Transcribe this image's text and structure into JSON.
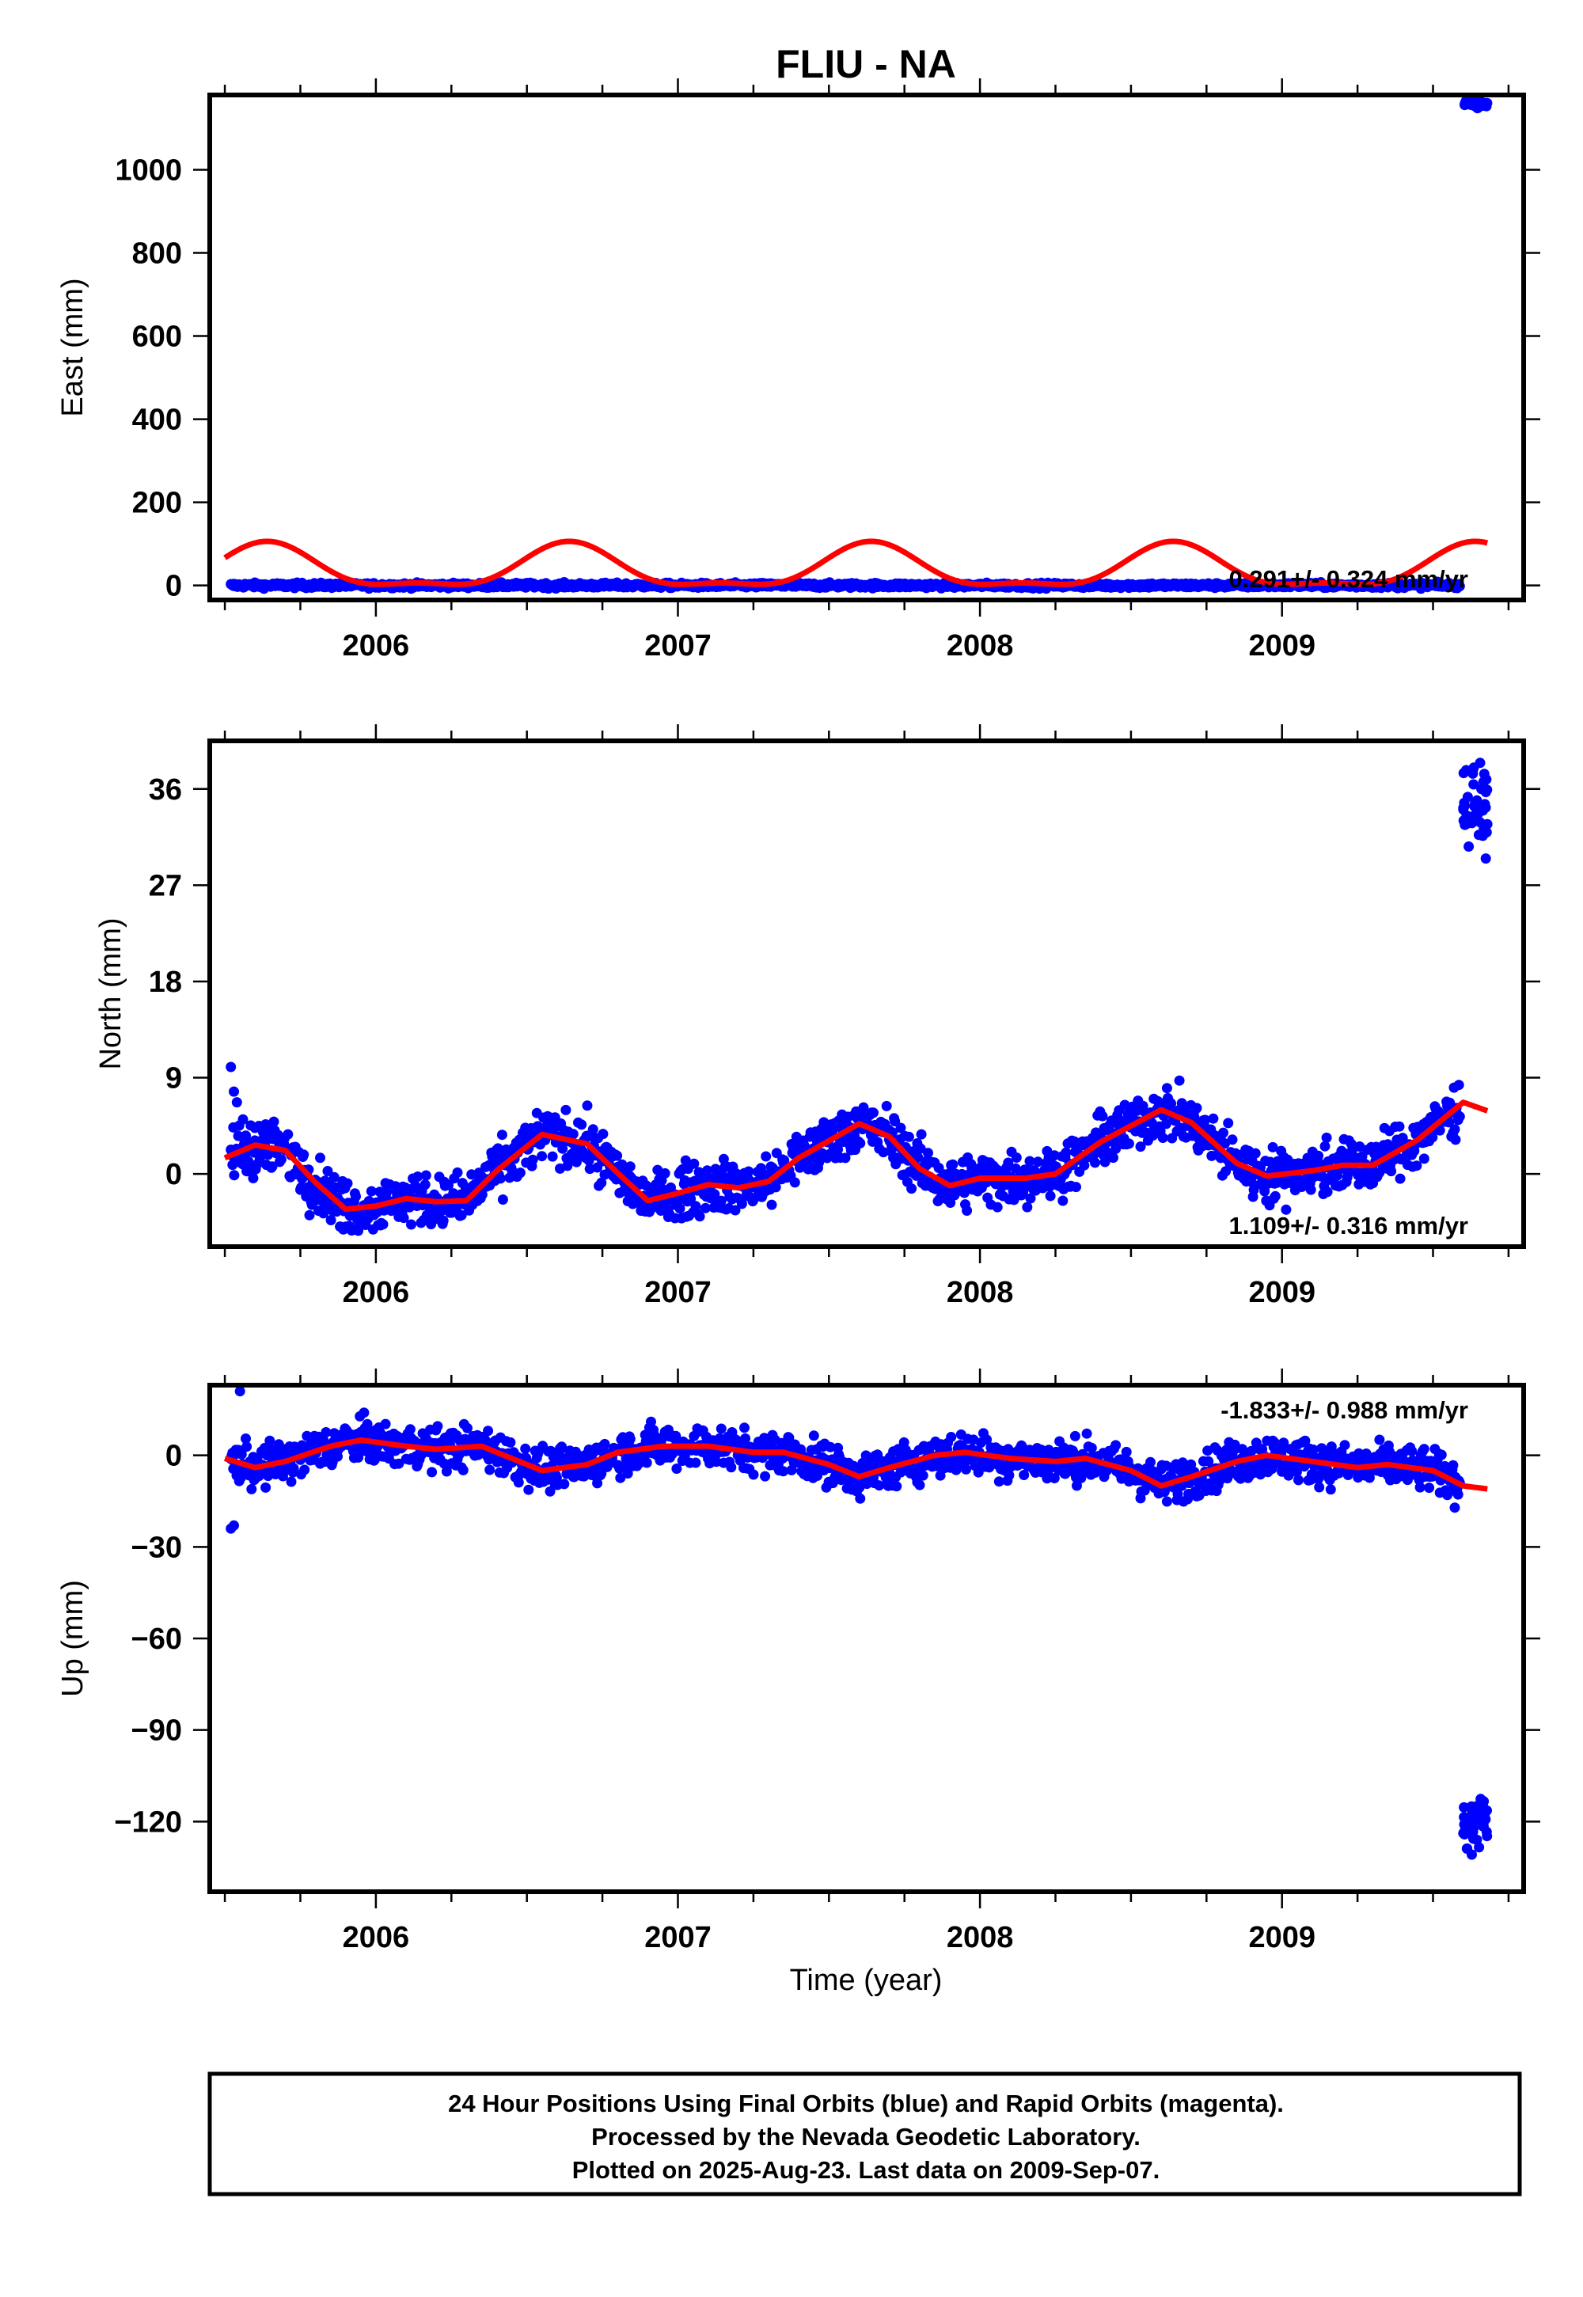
{
  "title": "FLIU - NA",
  "xlabel": "Time (year)",
  "colors": {
    "final": "#0000ff",
    "model": "#ff0000",
    "frame": "#000000"
  },
  "chart_data": [
    {
      "type": "scatter",
      "ylabel": "East (mm)",
      "xlim": [
        2005.45,
        2009.8
      ],
      "ylim": [
        -35,
        1180
      ],
      "xticks": [
        2006,
        2007,
        2008,
        2009
      ],
      "yticks": [
        0,
        200,
        400,
        600,
        800,
        1000
      ],
      "rate_text": "0.291+/- 0.324 mm/yr",
      "rate_position": "bottom-right",
      "series": [],
      "model": {
        "offset": 38,
        "annual_amp": 50,
        "annual_phase_year": 0.64,
        "semiannual_amp": 18,
        "semiannual_phase_year": 0.14
      },
      "scatter": {
        "center": 0,
        "jitter": 4,
        "seasonal_amp": 0
      },
      "outliers": {
        "x_range": [
          2009.6,
          2009.68
        ],
        "y_center": 1160,
        "spread": 6
      }
    },
    {
      "type": "scatter",
      "ylabel": "North (mm)",
      "xlim": [
        2005.45,
        2009.8
      ],
      "ylim": [
        -6.8,
        40.5
      ],
      "xticks": [
        2006,
        2007,
        2008,
        2009
      ],
      "yticks": [
        0,
        9,
        18,
        27,
        36
      ],
      "rate_text": "1.109+/- 0.316 mm/yr",
      "rate_position": "bottom-right",
      "series": [],
      "model_points": [
        [
          2005.5,
          1.5
        ],
        [
          2005.6,
          2.7
        ],
        [
          2005.7,
          2.2
        ],
        [
          2005.8,
          -0.8
        ],
        [
          2005.9,
          -3.3
        ],
        [
          2006.0,
          -3.0
        ],
        [
          2006.1,
          -2.3
        ],
        [
          2006.2,
          -2.6
        ],
        [
          2006.3,
          -2.5
        ],
        [
          2006.4,
          0.3
        ],
        [
          2006.55,
          3.7
        ],
        [
          2006.7,
          2.8
        ],
        [
          2006.8,
          0.1
        ],
        [
          2006.9,
          -2.5
        ],
        [
          2007.0,
          -1.8
        ],
        [
          2007.1,
          -1.0
        ],
        [
          2007.2,
          -1.3
        ],
        [
          2007.3,
          -0.7
        ],
        [
          2007.4,
          1.5
        ],
        [
          2007.6,
          4.7
        ],
        [
          2007.7,
          3.5
        ],
        [
          2007.8,
          0.5
        ],
        [
          2007.9,
          -1.1
        ],
        [
          2008.0,
          -0.4
        ],
        [
          2008.15,
          -0.4
        ],
        [
          2008.25,
          0.0
        ],
        [
          2008.4,
          3.0
        ],
        [
          2008.6,
          6.0
        ],
        [
          2008.7,
          4.8
        ],
        [
          2008.85,
          1.0
        ],
        [
          2008.95,
          -0.2
        ],
        [
          2009.1,
          0.3
        ],
        [
          2009.2,
          0.8
        ],
        [
          2009.3,
          0.8
        ],
        [
          2009.45,
          3.2
        ],
        [
          2009.6,
          6.7
        ],
        [
          2009.68,
          5.9
        ]
      ],
      "scatter": {
        "jitter": 1.6
      },
      "early_points": [
        [
          2005.52,
          10.0
        ],
        [
          2005.53,
          7.7
        ],
        [
          2005.54,
          6.7
        ],
        [
          2005.56,
          5.1
        ],
        [
          2005.6,
          4.3
        ]
      ],
      "outliers": {
        "x_range": [
          2009.6,
          2009.68
        ],
        "y_center": 34.5,
        "spread": 2.2
      }
    },
    {
      "type": "scatter",
      "ylabel": "Up (mm)",
      "xlim": [
        2005.45,
        2009.8
      ],
      "ylim": [
        -143,
        23
      ],
      "xticks": [
        2006,
        2007,
        2008,
        2009
      ],
      "yticks": [
        -120,
        -90,
        -60,
        -30,
        0
      ],
      "rate_text": "-1.833+/- 0.988 mm/yr",
      "rate_position": "top-right",
      "series": [],
      "model_points": [
        [
          2005.5,
          -1
        ],
        [
          2005.6,
          -4
        ],
        [
          2005.7,
          -2
        ],
        [
          2005.85,
          3
        ],
        [
          2005.95,
          5
        ],
        [
          2006.1,
          3
        ],
        [
          2006.2,
          2
        ],
        [
          2006.35,
          3
        ],
        [
          2006.45,
          -1
        ],
        [
          2006.55,
          -5
        ],
        [
          2006.7,
          -3
        ],
        [
          2006.8,
          1
        ],
        [
          2006.95,
          3
        ],
        [
          2007.1,
          3
        ],
        [
          2007.25,
          1
        ],
        [
          2007.35,
          1
        ],
        [
          2007.5,
          -3
        ],
        [
          2007.6,
          -7
        ],
        [
          2007.7,
          -4
        ],
        [
          2007.85,
          0
        ],
        [
          2007.95,
          1
        ],
        [
          2008.1,
          -1
        ],
        [
          2008.25,
          -2
        ],
        [
          2008.35,
          -1
        ],
        [
          2008.5,
          -5
        ],
        [
          2008.6,
          -10
        ],
        [
          2008.7,
          -7
        ],
        [
          2008.85,
          -2
        ],
        [
          2008.95,
          0
        ],
        [
          2009.1,
          -2
        ],
        [
          2009.25,
          -4
        ],
        [
          2009.35,
          -3
        ],
        [
          2009.5,
          -5
        ],
        [
          2009.6,
          -10
        ],
        [
          2009.68,
          -11
        ]
      ],
      "scatter": {
        "jitter": 4.5
      },
      "early_points": [
        [
          2005.52,
          -24
        ],
        [
          2005.53,
          -23
        ],
        [
          2005.55,
          21
        ]
      ],
      "outliers": {
        "x_range": [
          2009.6,
          2009.68
        ],
        "y_center": -121,
        "spread": 6
      }
    }
  ],
  "footer": {
    "line1": "24 Hour Positions Using Final Orbits (blue) and Rapid Orbits (magenta).",
    "line2": "Processed by the Nevada Geodetic Laboratory.",
    "line3": "Plotted on 2025-Aug-23. Last data on 2009-Sep-07."
  }
}
